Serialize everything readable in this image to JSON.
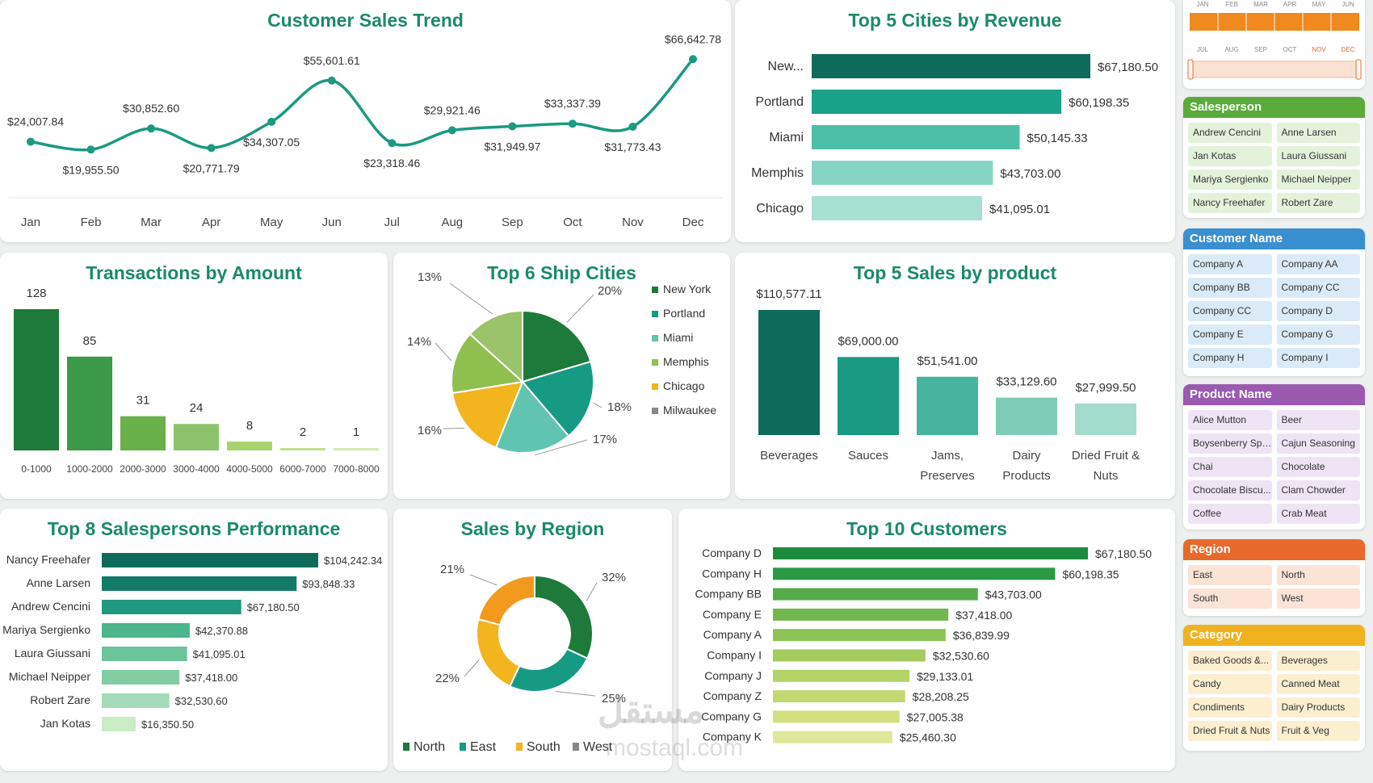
{
  "trend": {
    "title": "Customer Sales Trend",
    "chart_data": {
      "type": "line",
      "categories": [
        "Jan",
        "Feb",
        "Mar",
        "Apr",
        "May",
        "Jun",
        "Jul",
        "Aug",
        "Sep",
        "Oct",
        "Nov",
        "Dec"
      ],
      "values": [
        24007.84,
        19955.5,
        30852.6,
        20771.79,
        34307.05,
        55601.61,
        23318.46,
        29921.46,
        31949.97,
        33337.39,
        31773.43,
        66642.78
      ],
      "labels": [
        "$24,007.84",
        "$19,955.50",
        "$30,852.60",
        "$20,771.79",
        "$34,307.05",
        "$55,601.61",
        "$23,318.46",
        "$29,921.46",
        "$31,949.97",
        "$33,337.39",
        "$31,773.43",
        "$66,642.78"
      ],
      "color": "#1a9a80"
    }
  },
  "cities": {
    "title": "Top 5 Cities by Revenue",
    "chart_data": {
      "type": "bar",
      "categories": [
        "New...",
        "Portland",
        "Miami",
        "Memphis",
        "Chicago"
      ],
      "values": [
        67180.5,
        60198.35,
        50145.33,
        43703.0,
        41095.01
      ],
      "labels": [
        "$67,180.50",
        "$60,198.35",
        "$50,145.33",
        "$43,703.00",
        "$41,095.01"
      ],
      "colors": [
        "#0e6b5a",
        "#1aa28a",
        "#4cbfa6",
        "#86d5c2",
        "#a8e0d2"
      ]
    }
  },
  "transactions": {
    "title": "Transactions by Amount",
    "chart_data": {
      "type": "bar",
      "categories": [
        "0-1000",
        "1000-2000",
        "2000-3000",
        "3000-4000",
        "4000-5000",
        "6000-7000",
        "7000-8000"
      ],
      "values": [
        128,
        85,
        31,
        24,
        8,
        2,
        1
      ],
      "colors": [
        "#1e7a3a",
        "#3a9a48",
        "#69b04a",
        "#8cc36a",
        "#a9d36f",
        "#bfe08d",
        "#d2e9b2"
      ]
    }
  },
  "shipcities": {
    "title": "Top 6 Ship Cities",
    "chart_data": {
      "type": "pie",
      "categories": [
        "New York",
        "Portland",
        "Miami",
        "Memphis",
        "Chicago",
        "Milwaukee"
      ],
      "values": [
        20,
        18,
        17,
        16,
        14,
        13
      ],
      "labels": [
        "20%",
        "18%",
        "17%",
        "16%",
        "14%",
        "13%"
      ],
      "colors": [
        "#1e7a3a",
        "#169a84",
        "#60c4b0",
        "#f3b51e",
        "#8fc04f",
        "#9ac36a"
      ],
      "legend_colors": [
        "#1e7a3a",
        "#169a84",
        "#60c4b0",
        "#8fc04f",
        "#f3b51e",
        "#888888"
      ]
    }
  },
  "products": {
    "title": "Top 5 Sales by product",
    "chart_data": {
      "type": "bar",
      "categories": [
        [
          "Beverages"
        ],
        [
          "Sauces"
        ],
        [
          "Jams,",
          "Preserves"
        ],
        [
          "Dairy",
          "Products"
        ],
        [
          "Dried Fruit &",
          "Nuts"
        ]
      ],
      "values": [
        110577.11,
        69000.0,
        51541.0,
        33129.6,
        27999.5
      ],
      "labels": [
        "$110,577.11",
        "$69,000.00",
        "$51,541.00",
        "$33,129.60",
        "$27,999.50"
      ],
      "colors": [
        "#0e6b5a",
        "#1a9a80",
        "#47b59e",
        "#7fcdb8",
        "#a3dccd"
      ]
    }
  },
  "salespersons": {
    "title": "Top 8 Salespersons Performance",
    "chart_data": {
      "type": "bar",
      "categories": [
        "Nancy Freehafer",
        "Anne Larsen",
        "Andrew Cencini",
        "Mariya Sergienko",
        "Laura Giussani",
        "Michael Neipper",
        "Robert Zare",
        "Jan Kotas"
      ],
      "values": [
        104242.34,
        93848.33,
        67180.5,
        42370.88,
        41095.01,
        37418.0,
        32530.6,
        16350.5
      ],
      "labels": [
        "$104,242.34",
        "$93,848.33",
        "$67,180.50",
        "$42,370.88",
        "$41,095.01",
        "$37,418.00",
        "$32,530.60",
        "$16,350.50"
      ],
      "colors": [
        "#0e6b5a",
        "#137a66",
        "#1f9a7e",
        "#4cb58c",
        "#6bc49a",
        "#82cda4",
        "#a3dbb8",
        "#c9ebc5"
      ]
    }
  },
  "region": {
    "title": "Sales by Region",
    "chart_data": {
      "type": "pie",
      "categories": [
        "North",
        "East",
        "South",
        "West"
      ],
      "values": [
        32,
        25,
        22,
        21
      ],
      "labels": [
        "32%",
        "25%",
        "22%",
        "21%"
      ],
      "colors": [
        "#1e7a3a",
        "#169a84",
        "#f3b51e",
        "#f39a1e"
      ],
      "legend_colors": [
        "#1e7a3a",
        "#169a84",
        "#f3b51e",
        "#888888"
      ]
    }
  },
  "customers": {
    "title": "Top 10 Customers",
    "chart_data": {
      "type": "bar",
      "categories": [
        "Company D",
        "Company H",
        "Company BB",
        "Company E",
        "Company A",
        "Company I",
        "Company J",
        "Company Z",
        "Company G",
        "Company K"
      ],
      "values": [
        67180.5,
        60198.35,
        43703.0,
        37418.0,
        36839.99,
        32530.6,
        29133.01,
        28208.25,
        27005.38,
        25460.3
      ],
      "labels": [
        "$67,180.50",
        "$60,198.35",
        "$43,703.00",
        "$37,418.00",
        "$36,839.99",
        "$32,530.60",
        "$29,133.01",
        "$28,208.25",
        "$27,005.38",
        "$25,460.30"
      ],
      "colors": [
        "#1e8a3e",
        "#2a9a44",
        "#55ab4a",
        "#72b84f",
        "#8cc356",
        "#a5cc5e",
        "#b3d368",
        "#c3d873",
        "#d2e080",
        "#dfe79a"
      ]
    }
  },
  "timeline": {
    "row1": [
      "JAN",
      "FEB",
      "MAR",
      "APR",
      "MAY",
      "JUN"
    ],
    "row2": [
      "JUL",
      "AUG",
      "SEP",
      "OCT",
      "NOV",
      "DEC"
    ],
    "bar_color": "#f08a1e"
  },
  "slicers": {
    "salesperson": {
      "title": "Salesperson",
      "color": "#5aab3a",
      "item_bg": "#e4f2dc",
      "items": [
        "Andrew Cencini",
        "Anne Larsen",
        "Jan Kotas",
        "Laura Giussani",
        "Mariya Sergienko",
        "Michael Neipper",
        "Nancy Freehafer",
        "Robert Zare"
      ]
    },
    "customer": {
      "title": "Customer Name",
      "color": "#3a8fd0",
      "item_bg": "#dbeaf8",
      "items": [
        "Company A",
        "Company AA",
        "Company BB",
        "Company CC",
        "Company CC",
        "Company D",
        "Company E",
        "Company G",
        "Company H",
        "Company I"
      ]
    },
    "product": {
      "title": "Product Name",
      "color": "#9a5ab0",
      "item_bg": "#efe4f4",
      "items": [
        "Alice Mutton",
        "Beer",
        "Boysenberry Spre...",
        "Cajun Seasoning",
        "Chai",
        "Chocolate",
        "Chocolate Biscu...",
        "Clam Chowder",
        "Coffee",
        "Crab Meat"
      ]
    },
    "region": {
      "title": "Region",
      "color": "#e8692a",
      "item_bg": "#fbe3d6",
      "items": [
        "East",
        "North",
        "South",
        "West"
      ]
    },
    "category": {
      "title": "Category",
      "color": "#f0b21e",
      "item_bg": "#fcefcf",
      "items": [
        "Baked Goods &...",
        "Beverages",
        "Candy",
        "Canned Meat",
        "Condiments",
        "Dairy Products",
        "Dried Fruit & Nuts",
        "Fruit & Veg"
      ]
    }
  },
  "watermark": {
    "text1": "مستقل",
    "text2": "mostaql.com"
  }
}
